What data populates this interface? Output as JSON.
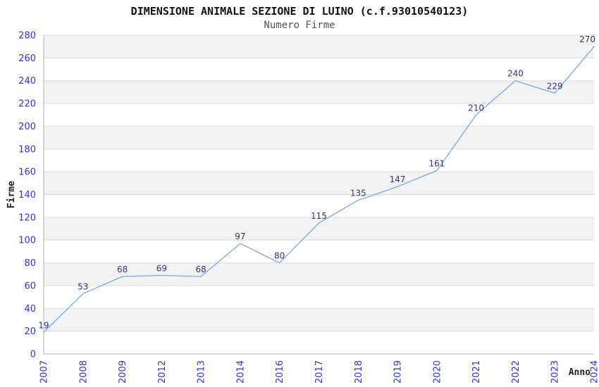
{
  "chart_data": {
    "type": "line",
    "title": "DIMENSIONE ANIMALE SEZIONE DI LUINO (c.f.93010540123)",
    "subtitle": "Numero Firme",
    "xlabel": "Anno",
    "ylabel": "Firme",
    "categories": [
      "2007",
      "2008",
      "2009",
      "2012",
      "2013",
      "2014",
      "2016",
      "2017",
      "2018",
      "2019",
      "2020",
      "2021",
      "2022",
      "2023",
      "2024"
    ],
    "values": [
      19,
      53,
      68,
      69,
      68,
      97,
      80,
      115,
      135,
      147,
      161,
      210,
      240,
      229,
      270
    ],
    "ylim": [
      0,
      280
    ],
    "ytick_step": 20,
    "grid": true,
    "legend": "none",
    "background_bands": "alternating-gray",
    "x_tick_rotation": 90,
    "data_labels_shown": true,
    "colors": {
      "line": "#7da7dd",
      "data_label": "#333380",
      "tick_label": "#3333cc",
      "axis_line": "#b0b0b0",
      "gridline": "#dcdcdc",
      "band": "#f2f2f2",
      "title": "#111111",
      "subtitle": "#555555",
      "axis_title": "#222222",
      "background": "#ffffff"
    }
  }
}
